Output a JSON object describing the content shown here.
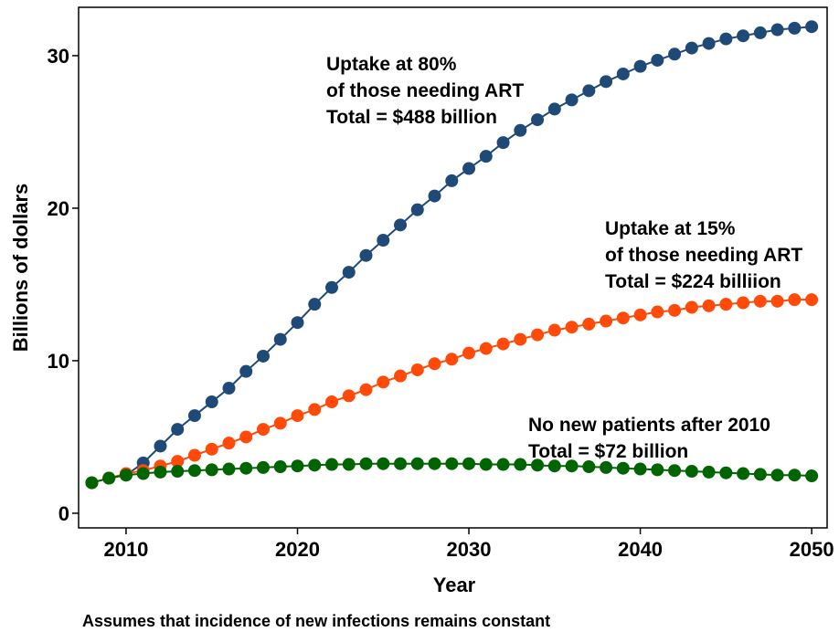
{
  "chart_data": {
    "type": "line",
    "x": [
      2008,
      2009,
      2010,
      2011,
      2012,
      2013,
      2014,
      2015,
      2016,
      2017,
      2018,
      2019,
      2020,
      2021,
      2022,
      2023,
      2024,
      2025,
      2026,
      2027,
      2028,
      2029,
      2030,
      2031,
      2032,
      2033,
      2034,
      2035,
      2036,
      2037,
      2038,
      2039,
      2040,
      2041,
      2042,
      2043,
      2044,
      2045,
      2046,
      2047,
      2048,
      2049,
      2050
    ],
    "series": [
      {
        "color": "#1f4a78",
        "values": [
          2.0,
          2.3,
          2.5,
          3.3,
          4.4,
          5.5,
          6.4,
          7.3,
          8.2,
          9.3,
          10.3,
          11.4,
          12.5,
          13.7,
          14.8,
          15.8,
          16.9,
          17.9,
          18.9,
          19.9,
          20.8,
          21.8,
          22.6,
          23.4,
          24.3,
          25.1,
          25.8,
          26.5,
          27.1,
          27.7,
          28.3,
          28.8,
          29.3,
          29.7,
          30.1,
          30.5,
          30.8,
          31.1,
          31.3,
          31.5,
          31.7,
          31.8,
          31.9
        ]
      },
      {
        "color": "#ff4a0a",
        "values": [
          2.0,
          2.3,
          2.6,
          2.8,
          3.1,
          3.4,
          3.8,
          4.2,
          4.6,
          5.0,
          5.5,
          5.9,
          6.4,
          6.8,
          7.3,
          7.7,
          8.1,
          8.6,
          9.0,
          9.4,
          9.8,
          10.1,
          10.5,
          10.8,
          11.1,
          11.4,
          11.7,
          12.0,
          12.2,
          12.4,
          12.6,
          12.8,
          13.0,
          13.2,
          13.3,
          13.5,
          13.6,
          13.7,
          13.8,
          13.9,
          13.9,
          14.0,
          14.0
        ]
      },
      {
        "color": "#006400",
        "values": [
          2.0,
          2.3,
          2.5,
          2.6,
          2.7,
          2.75,
          2.8,
          2.85,
          2.9,
          2.95,
          3.0,
          3.05,
          3.1,
          3.15,
          3.2,
          3.2,
          3.25,
          3.25,
          3.25,
          3.25,
          3.25,
          3.25,
          3.25,
          3.2,
          3.2,
          3.2,
          3.15,
          3.1,
          3.1,
          3.05,
          3.0,
          2.95,
          2.9,
          2.85,
          2.8,
          2.75,
          2.7,
          2.65,
          2.6,
          2.55,
          2.5,
          2.5,
          2.45
        ]
      }
    ],
    "xlim": [
      2007.23,
      2050.9
    ],
    "xticks": [
      2010,
      2020,
      2030,
      2040,
      2050
    ],
    "ylim": [
      -0.96,
      33.17
    ],
    "yticks": [
      0,
      10,
      20,
      30
    ],
    "x_label": "Year",
    "y_label": "Billions of dollars",
    "annotations": [
      [
        "Uptake at 80%",
        "of those needing ART",
        "Total = $488 billion"
      ],
      [
        "Uptake at 15%",
        "of those needing ART",
        "Total = $224 billiion"
      ],
      [
        "No new patients after 2010",
        "Total = $72 billion"
      ]
    ],
    "note": "Assumes that incidence of new infections remains constant"
  }
}
